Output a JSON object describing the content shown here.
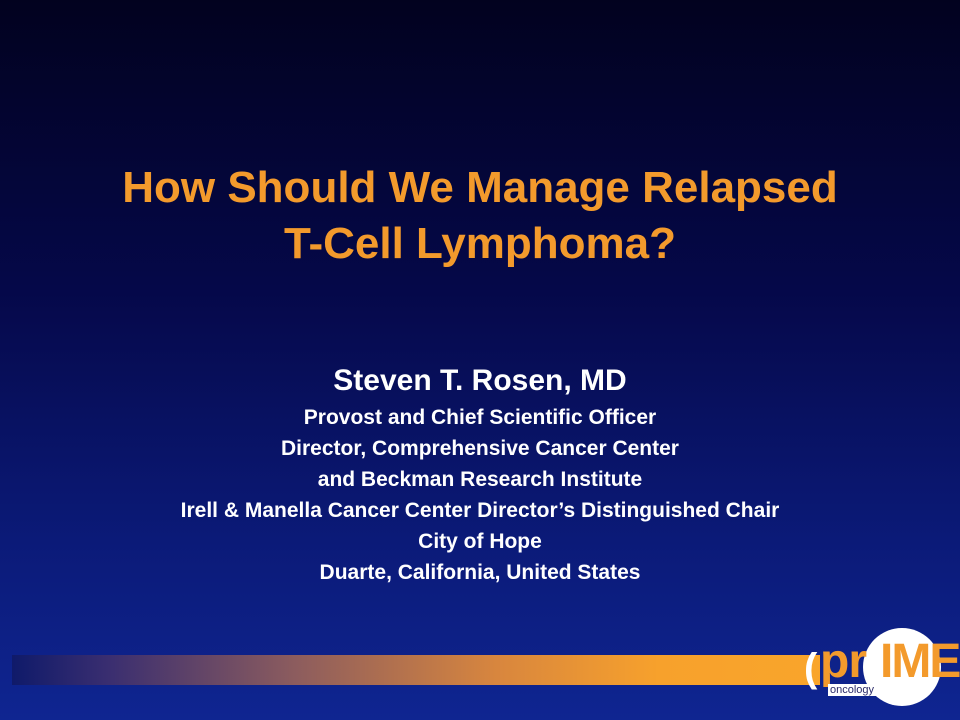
{
  "slide": {
    "title_lines": [
      "How Should We Manage Relapsed",
      "T-Cell Lymphoma?"
    ],
    "presenter": {
      "name": "Steven T. Rosen, MD",
      "lines": [
        "Provost and Chief Scientific Officer",
        "Director, Comprehensive Cancer Center",
        "and Beckman Research Institute",
        "Irell & Manella Cancer Center Director’s Distinguished Chair",
        "City of Hope",
        "Duarte, California, United States"
      ]
    },
    "logo": {
      "paren": "(",
      "part1": "pr",
      "part2": "IME",
      "sub": "oncology"
    },
    "colors": {
      "title": "#f39a2c",
      "text": "#ffffff",
      "background": "#050849"
    }
  }
}
